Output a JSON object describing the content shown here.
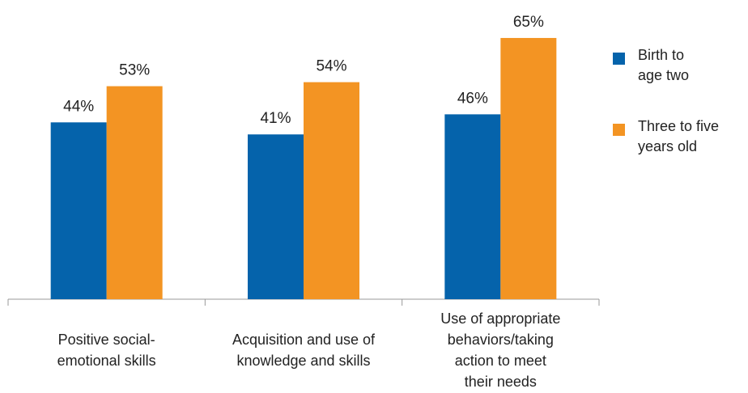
{
  "chart_data": {
    "type": "bar",
    "categories": [
      "Positive social-\nemotional skills",
      "Acquisition and use of\nknowledge and skills",
      "Use of appropriate\nbehaviors/taking\naction to meet\ntheir needs"
    ],
    "series": [
      {
        "name": "Birth to\nage two",
        "color": "#0563ab",
        "values": [
          44,
          41,
          46
        ],
        "value_labels": [
          "44%",
          "41%",
          "46%"
        ]
      },
      {
        "name": "Three to five\nyears old",
        "color": "#f39423",
        "values": [
          53,
          54,
          65
        ],
        "value_labels": [
          "53%",
          "54%",
          "65%"
        ]
      }
    ],
    "legend": "right"
  }
}
